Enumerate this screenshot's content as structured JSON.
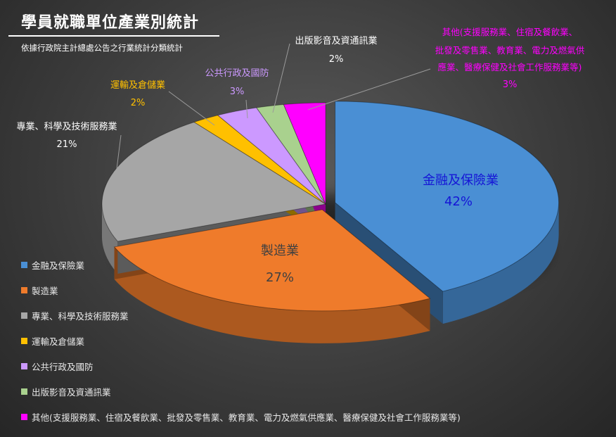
{
  "header": {
    "title": "學員就職單位產業別統計",
    "subtitle": "依據行政院主計總處公告之行業統計分類統計"
  },
  "chart_data": {
    "type": "pie",
    "title": "學員就職單位產業別統計",
    "subtitle": "依據行政院主計總處公告之行業統計分類統計",
    "legend_position": "bottom-left",
    "slices": [
      {
        "name": "金融及保險業",
        "value": 42,
        "label": "42%",
        "color": "#4a8fd4",
        "label_color": "#1515d6"
      },
      {
        "name": "製造業",
        "value": 27,
        "label": "27%",
        "color": "#ef7b2b",
        "label_color": "#404040"
      },
      {
        "name": "專業、科學及技術服務業",
        "value": 21,
        "label": "21%",
        "color": "#a6a6a6",
        "label_color": "#ffffff"
      },
      {
        "name": "運輸及倉儲業",
        "value": 2,
        "label": "2%",
        "color": "#ffc000",
        "label_color": "#ffc000"
      },
      {
        "name": "公共行政及國防",
        "value": 3,
        "label": "3%",
        "color": "#cc99ff",
        "label_color": "#cc99ff"
      },
      {
        "name": "出版影音及資通訊業",
        "value": 2,
        "label": "2%",
        "color": "#a9d18e",
        "label_color": "#ffffff"
      },
      {
        "name": "其他(支援服務業、住宿及餐飲業、批發及零售業、教育業、電力及燃氣供應業、醫療保健及社會工作服務業等)",
        "value": 3,
        "label": "3%",
        "color": "#ff00ff",
        "label_color": "#ff00ff"
      }
    ]
  }
}
